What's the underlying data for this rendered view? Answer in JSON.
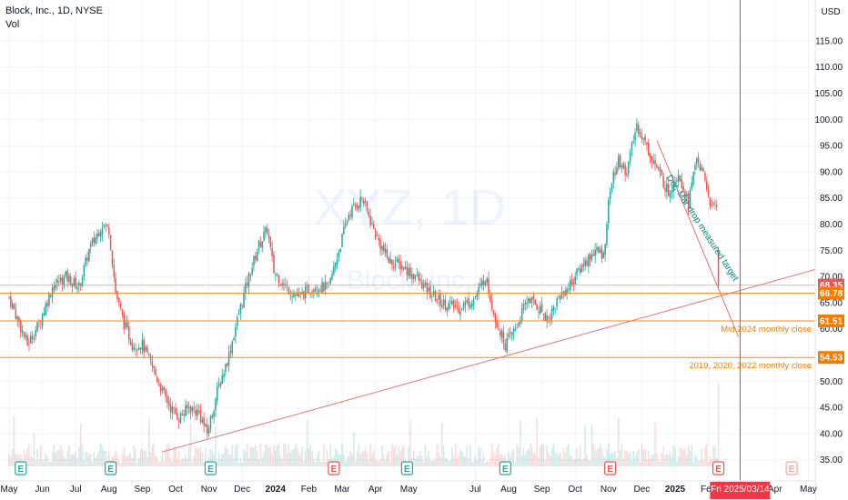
{
  "header": {
    "symbol_line": "Block, Inc., 1D, NYSE",
    "volume_label": "Vol",
    "currency": "USD"
  },
  "watermark": {
    "ticker": "XYZ, 1D",
    "company": "Block, Inc."
  },
  "colors": {
    "up": "#26a69a",
    "down": "#ef5350",
    "hline": "#f57c00",
    "trend": "#e57373",
    "crosshair": "#f23645",
    "note": "#00897b",
    "earn_green": "#26a69a",
    "earn_red": "#ef5350"
  },
  "chart_data": {
    "type": "candlestick",
    "title": "Block, Inc., 1D, NYSE",
    "ylabel": "USD",
    "y_ticks": [
      35,
      40,
      45,
      50,
      55,
      60,
      65,
      70,
      75,
      80,
      85,
      90,
      95,
      100,
      105,
      110,
      115
    ],
    "y_tick_labels": [
      "35.00",
      "40.00",
      "45.00",
      "50.00",
      "55.00",
      "60.00",
      "65.00",
      "70.00",
      "75.00",
      "80.00",
      "85.00",
      "90.00",
      "95.00",
      "100.00",
      "105.00",
      "110.00",
      "115.00"
    ],
    "x_labels": [
      {
        "label": "May",
        "t": 0
      },
      {
        "label": "Jun",
        "t": 1
      },
      {
        "label": "Jul",
        "t": 2
      },
      {
        "label": "Aug",
        "t": 3
      },
      {
        "label": "Sep",
        "t": 4
      },
      {
        "label": "Oct",
        "t": 5
      },
      {
        "label": "Nov",
        "t": 6
      },
      {
        "label": "Dec",
        "t": 7
      },
      {
        "label": "2024",
        "t": 8
      },
      {
        "label": "Feb",
        "t": 9
      },
      {
        "label": "Mar",
        "t": 10
      },
      {
        "label": "Apr",
        "t": 11
      },
      {
        "label": "May",
        "t": 12
      },
      {
        "label": "Jul",
        "t": 14
      },
      {
        "label": "Aug",
        "t": 15
      },
      {
        "label": "Sep",
        "t": 16
      },
      {
        "label": "Oct",
        "t": 17
      },
      {
        "label": "Nov",
        "t": 18
      },
      {
        "label": "Dec",
        "t": 19
      },
      {
        "label": "2025",
        "t": 20
      },
      {
        "label": "Feb",
        "t": 21
      },
      {
        "label": "Apr",
        "t": 23
      },
      {
        "label": "May",
        "t": 24
      }
    ],
    "price_path": [
      [
        0.0,
        66
      ],
      [
        0.25,
        62
      ],
      [
        0.55,
        57
      ],
      [
        0.9,
        61
      ],
      [
        1.3,
        68
      ],
      [
        1.7,
        70
      ],
      [
        2.1,
        68
      ],
      [
        2.4,
        75
      ],
      [
        2.8,
        80
      ],
      [
        3.0,
        79
      ],
      [
        3.2,
        67
      ],
      [
        3.45,
        61
      ],
      [
        3.7,
        57
      ],
      [
        4.0,
        57
      ],
      [
        4.35,
        52
      ],
      [
        4.6,
        48
      ],
      [
        4.85,
        45
      ],
      [
        5.1,
        43
      ],
      [
        5.4,
        45
      ],
      [
        5.7,
        44
      ],
      [
        5.95,
        40
      ],
      [
        6.25,
        48
      ],
      [
        6.6,
        55
      ],
      [
        6.9,
        63
      ],
      [
        7.2,
        70
      ],
      [
        7.5,
        76
      ],
      [
        7.75,
        79
      ],
      [
        7.95,
        71
      ],
      [
        8.3,
        68
      ],
      [
        8.7,
        66
      ],
      [
        9.1,
        68
      ],
      [
        9.6,
        68
      ],
      [
        9.9,
        75
      ],
      [
        10.2,
        82
      ],
      [
        10.6,
        85
      ],
      [
        11.0,
        78
      ],
      [
        11.4,
        73
      ],
      [
        11.8,
        72
      ],
      [
        12.2,
        70
      ],
      [
        12.6,
        67
      ],
      [
        13.0,
        65
      ],
      [
        13.5,
        64
      ],
      [
        14.0,
        66
      ],
      [
        14.3,
        70
      ],
      [
        14.6,
        62
      ],
      [
        14.9,
        57
      ],
      [
        15.2,
        60
      ],
      [
        15.6,
        66
      ],
      [
        15.9,
        64
      ],
      [
        16.2,
        62
      ],
      [
        16.5,
        66
      ],
      [
        16.8,
        68
      ],
      [
        17.2,
        72
      ],
      [
        17.6,
        75
      ],
      [
        17.85,
        74
      ],
      [
        18.05,
        87
      ],
      [
        18.3,
        92
      ],
      [
        18.55,
        90
      ],
      [
        18.85,
        99
      ],
      [
        19.2,
        94
      ],
      [
        19.5,
        90
      ],
      [
        19.8,
        86
      ],
      [
        20.1,
        90
      ],
      [
        20.4,
        84
      ],
      [
        20.65,
        93
      ],
      [
        20.9,
        88
      ],
      [
        21.1,
        83
      ],
      [
        21.25,
        84
      ],
      [
        21.35,
        68
      ]
    ],
    "horizontal_levels": [
      {
        "price": 68.35,
        "label": "68.35",
        "note": ""
      },
      {
        "price": 66.78,
        "label": "66.78",
        "note": ""
      },
      {
        "price": 61.51,
        "label": "61.51",
        "note": "Mid 2024 monthly close"
      },
      {
        "price": 54.53,
        "label": "54.53",
        "note": "2019, 2020, 2022 monthly close"
      }
    ],
    "trendlines": [
      {
        "from": {
          "t": 4.6,
          "price": 36.5
        },
        "to": {
          "t": 24.3,
          "price": 71.5
        }
      },
      {
        "from": {
          "t": 19.45,
          "price": 96
        },
        "to": {
          "t": 21.9,
          "price": 58.5
        }
      }
    ],
    "annotation": {
      "text": "Dec-Mar drop measured target",
      "t": 20.75,
      "price": 79
    },
    "crosshair": {
      "t": 21.95,
      "label": "Fri 2025/03/14"
    },
    "earnings_markers": [
      {
        "t": 0.35,
        "kind": "E",
        "color": "green"
      },
      {
        "t": 3.05,
        "kind": "E",
        "color": "green"
      },
      {
        "t": 6.05,
        "kind": "E",
        "color": "green"
      },
      {
        "t": 9.75,
        "kind": "E",
        "color": "red"
      },
      {
        "t": 11.95,
        "kind": "E",
        "color": "green"
      },
      {
        "t": 14.9,
        "kind": "E",
        "color": "green"
      },
      {
        "t": 18.05,
        "kind": "E",
        "color": "red"
      },
      {
        "t": 21.3,
        "kind": "E",
        "color": "red"
      },
      {
        "t": 23.5,
        "kind": "E",
        "color": "light-red"
      }
    ]
  }
}
